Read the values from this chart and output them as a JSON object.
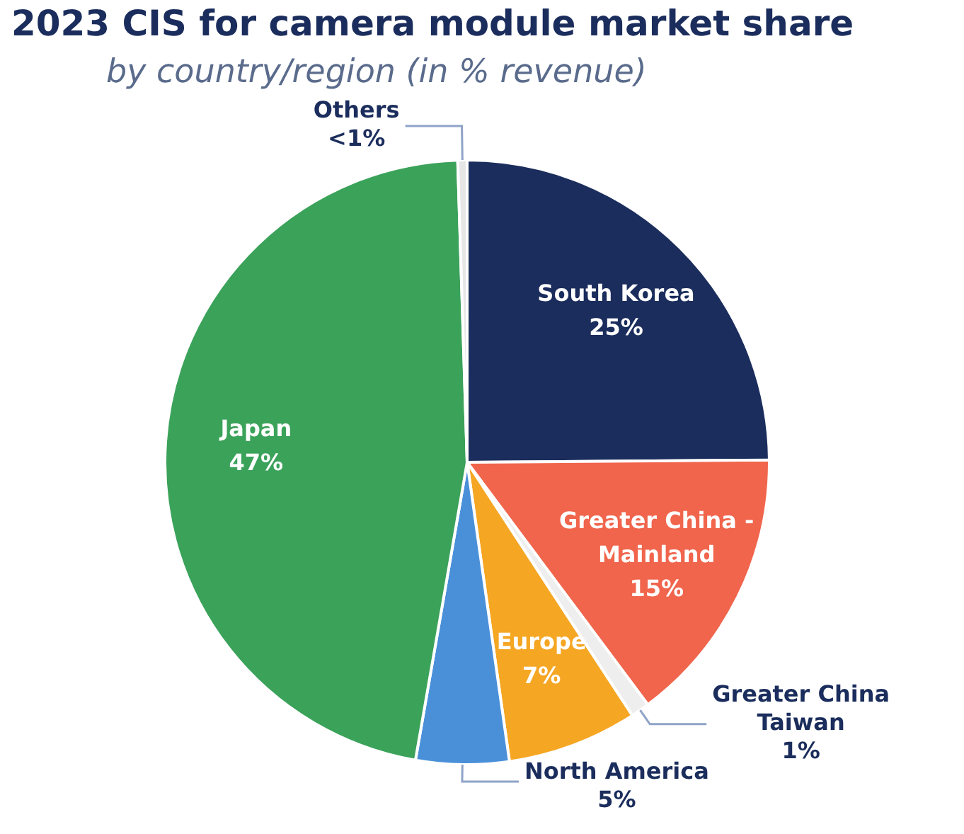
{
  "chart_data": {
    "type": "pie",
    "title": "2023 CIS for camera module market share",
    "subtitle": "by country/region (in % revenue)",
    "categories": [
      "South Korea",
      "Greater China - Mainland",
      "Greater China Taiwan",
      "Europe",
      "North America",
      "Japan",
      "Others"
    ],
    "values": [
      25,
      15,
      1,
      7,
      5,
      47,
      0.5
    ],
    "value_labels": [
      "25%",
      "15%",
      "1%",
      "7%",
      "5%",
      "47%",
      "<1%"
    ],
    "colors": [
      "#1b2d5c",
      "#f0654c",
      "#eeeeee",
      "#f5a623",
      "#4a90d9",
      "#3ba25a",
      "#e6e6e6"
    ],
    "legend": false
  }
}
